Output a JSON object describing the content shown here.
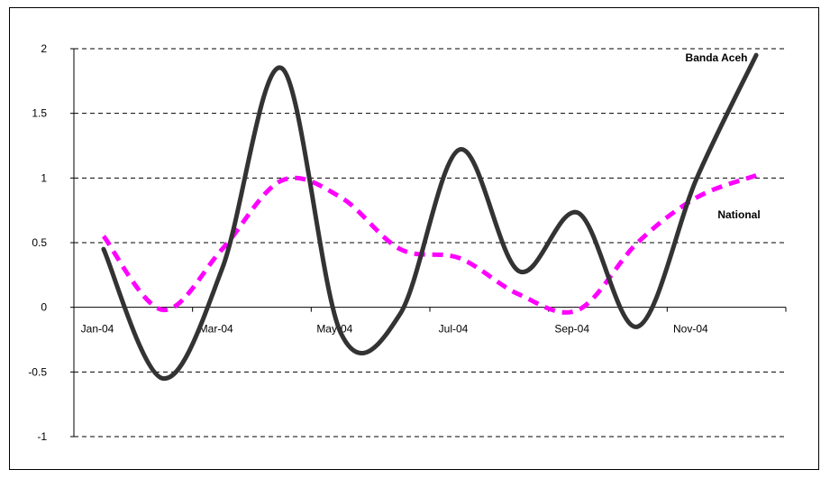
{
  "chart_data": {
    "type": "line",
    "x": [
      "Jan-04",
      "Feb-04",
      "Mar-04",
      "Apr-04",
      "May-04",
      "Jun-04",
      "Jul-04",
      "Aug-04",
      "Sep-04",
      "Oct-04",
      "Nov-04",
      "Dec-04"
    ],
    "x_tick_labels": [
      "Jan-04",
      "Mar-04",
      "May-04",
      "Jul-04",
      "Sep-04",
      "Nov-04"
    ],
    "series": [
      {
        "name": "Banda Aceh",
        "values": [
          0.45,
          -0.55,
          0.3,
          1.85,
          -0.2,
          -0.05,
          1.22,
          0.28,
          0.73,
          -0.15,
          1.0,
          1.95
        ],
        "color": "#333333",
        "style": "solid"
      },
      {
        "name": "National",
        "values": [
          0.55,
          -0.02,
          0.45,
          0.98,
          0.85,
          0.45,
          0.38,
          0.1,
          -0.02,
          0.5,
          0.85,
          1.02
        ],
        "color": "#ff00ff",
        "style": "dashed"
      }
    ],
    "ylim": [
      -1,
      2
    ],
    "y_ticks": [
      -1,
      -0.5,
      0,
      0.5,
      1,
      1.5,
      2
    ],
    "y_tick_labels": [
      "-1",
      "-0.5",
      "0",
      "0.5",
      "1",
      "1.5",
      "2"
    ],
    "grid": "horizontal dashed",
    "legend": "inline labels",
    "title": "",
    "xlabel": "",
    "ylabel": ""
  }
}
